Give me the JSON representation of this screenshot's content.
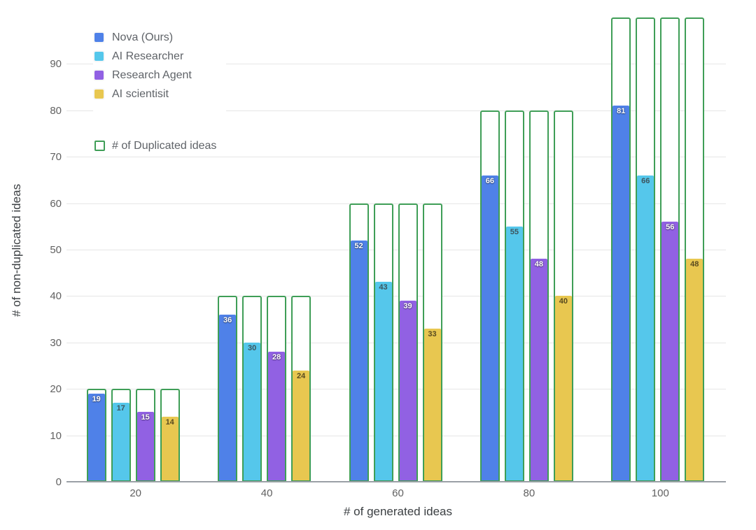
{
  "chart_data": {
    "type": "bar",
    "title": "",
    "xlabel": "# of generated ideas",
    "ylabel": "# of non-duplicated ideas",
    "categories": [
      "20",
      "40",
      "60",
      "80",
      "100"
    ],
    "series": [
      {
        "name": "Nova (Ours)",
        "color": "#4f81e8",
        "label_color": "#ffffff",
        "label_style": "light",
        "values": [
          19,
          36,
          52,
          66,
          81
        ]
      },
      {
        "name": "AI Researcher",
        "color": "#55c7eb",
        "label_color": "#3d555e",
        "label_style": "dark",
        "values": [
          17,
          30,
          43,
          55,
          66
        ]
      },
      {
        "name": "Research Agent",
        "color": "#9161e3",
        "label_color": "#ffffff",
        "label_style": "light",
        "values": [
          15,
          28,
          39,
          48,
          56
        ]
      },
      {
        "name": "AI scientisit",
        "color": "#e8c750",
        "label_color": "#584a20",
        "label_style": "dark",
        "values": [
          14,
          24,
          33,
          40,
          48
        ]
      }
    ],
    "outline_series": {
      "name": "# of Duplicated ideas",
      "color": "#3f9e57",
      "totals": [
        20,
        40,
        60,
        80,
        100
      ],
      "note": "hollow green outline bars mark the total generated ideas; white gap above each filled bar is the duplicated count"
    },
    "ylim": [
      0,
      100
    ],
    "yticks": [
      0,
      10,
      20,
      30,
      40,
      50,
      60,
      70,
      80,
      90
    ],
    "grid": "horizontal",
    "legend_position": "top-left",
    "colors": {
      "grid": "#e6e6e6",
      "axis_line": "#9aa0a6",
      "tick_label": "#616161",
      "axis_title": "#3c4043",
      "legend_text": "#5f6368",
      "background": "#ffffff"
    }
  }
}
